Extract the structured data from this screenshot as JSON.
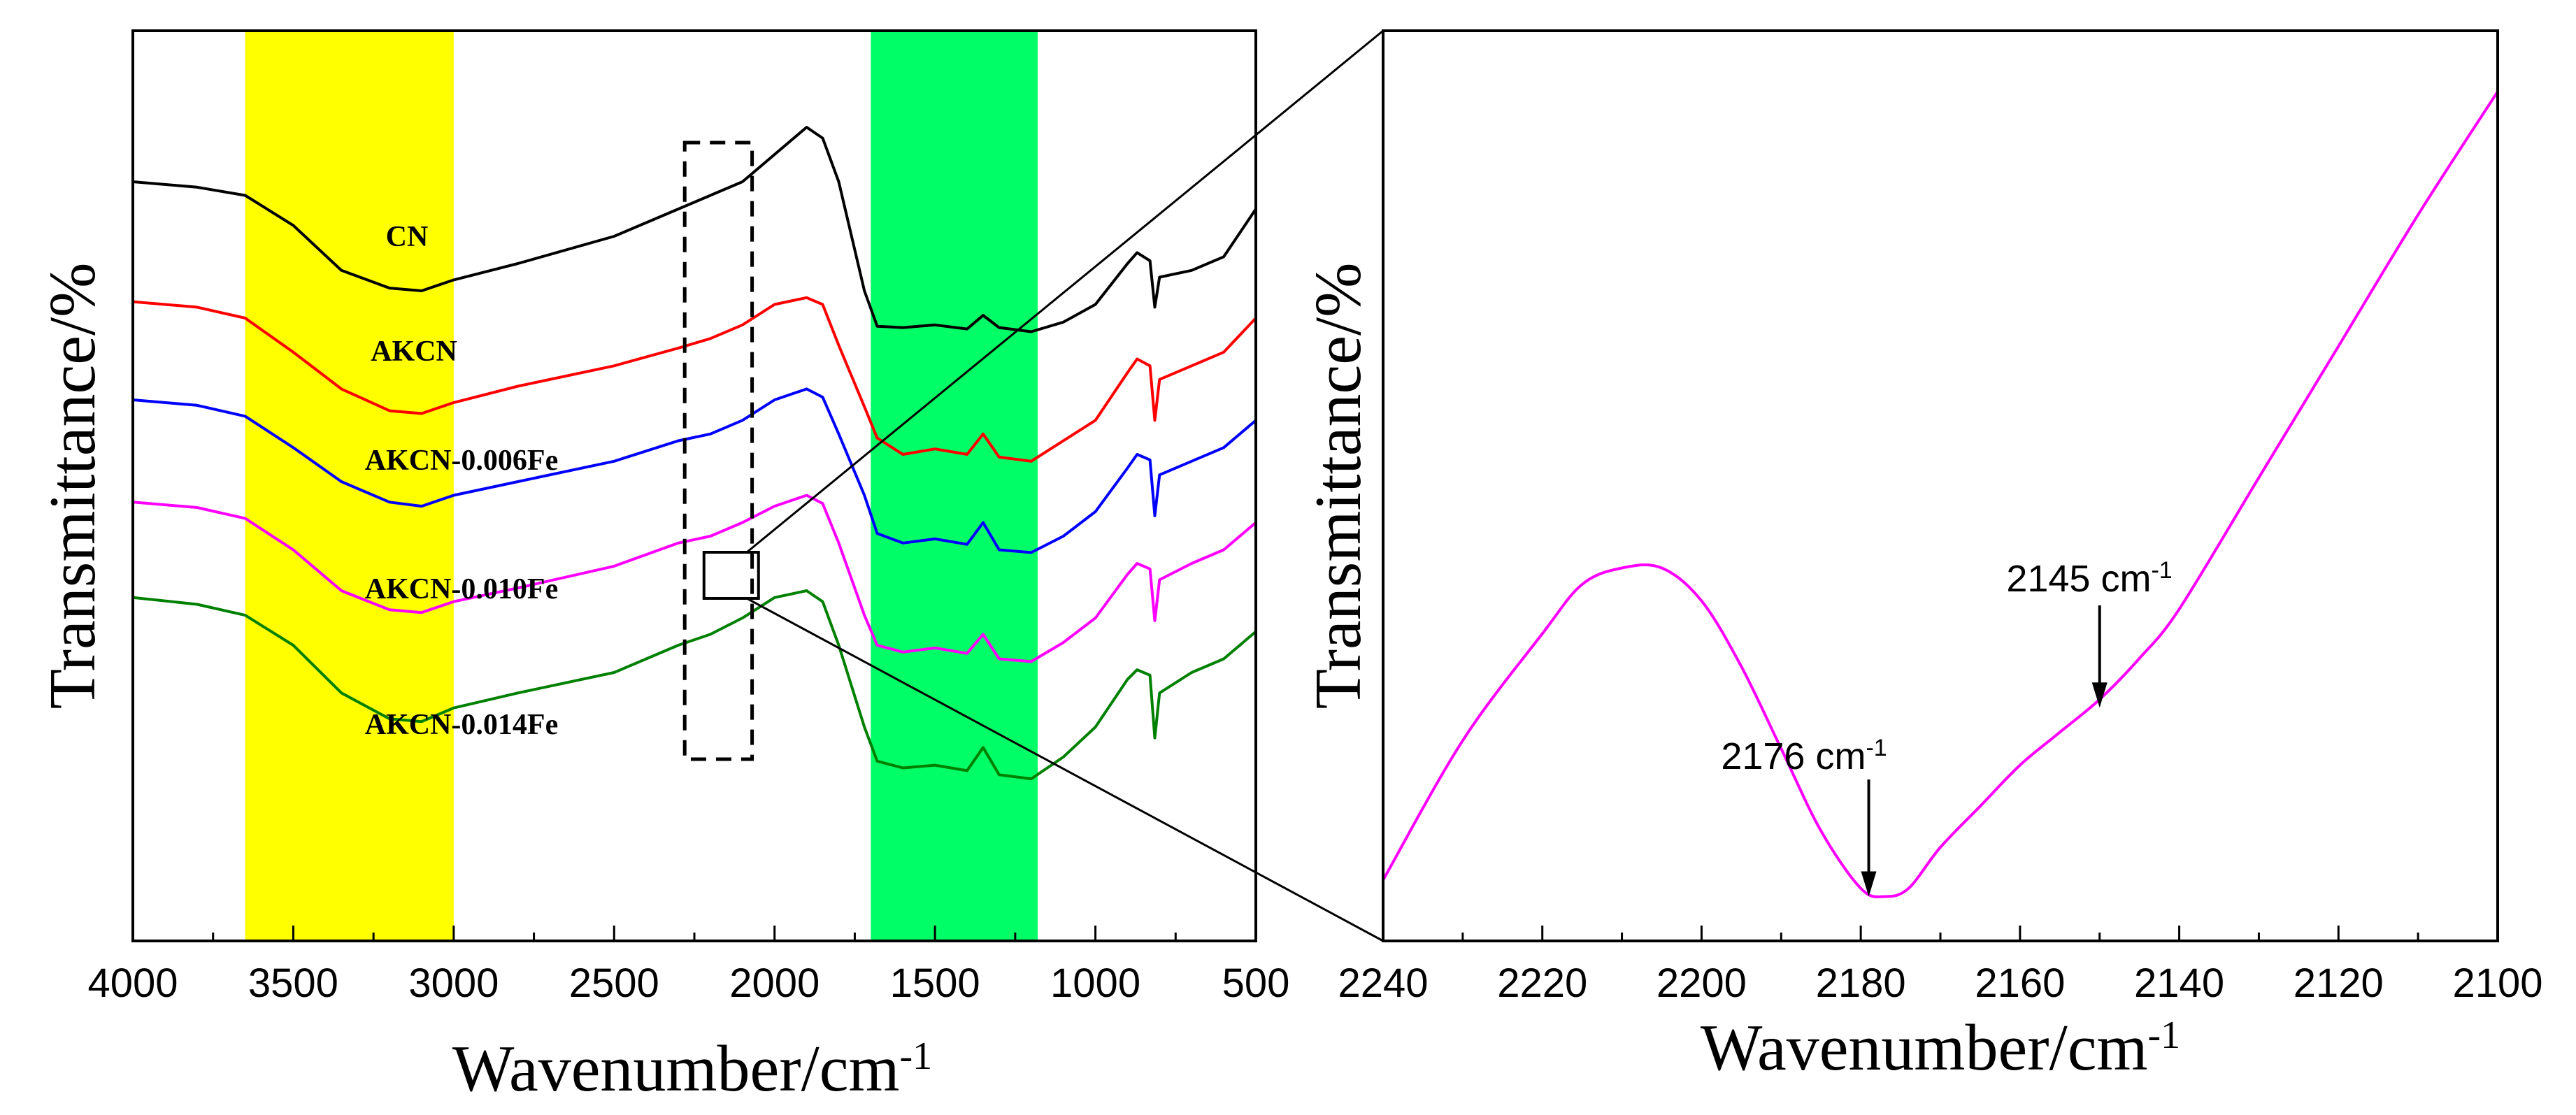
{
  "chart_data": [
    {
      "type": "line",
      "panel": "left",
      "xlabel_main": "Wavenumber/cm",
      "xlabel_sup": "-1",
      "ylabel": "Transmittance/%",
      "xlim": [
        4000,
        500
      ],
      "x_ticks": [
        "4000",
        "3500",
        "3000",
        "2500",
        "2000",
        "1500",
        "1000",
        "500"
      ],
      "y_ticks_shown": false,
      "highlight_bands": [
        {
          "name": "yellow-band",
          "x_from": 3650,
          "x_to": 3000,
          "color": "#ffff00"
        },
        {
          "name": "green-band",
          "x_from": 1700,
          "x_to": 1180,
          "color": "#00ff66"
        }
      ],
      "dashed_box": {
        "x_from": 2280,
        "x_to": 2070
      },
      "solid_box": {
        "x_from": 2220,
        "x_to": 2050
      },
      "series": [
        {
          "name": "CN",
          "label": "CN",
          "color": "#000000",
          "offset": 0,
          "points": [
            [
              4000,
              80
            ],
            [
              3800,
              84
            ],
            [
              3650,
              90
            ],
            [
              3500,
              112
            ],
            [
              3350,
              145
            ],
            [
              3200,
              158
            ],
            [
              3100,
              160
            ],
            [
              3000,
              152
            ],
            [
              2800,
              140
            ],
            [
              2500,
              120
            ],
            [
              2300,
              100
            ],
            [
              2100,
              80
            ],
            [
              2000,
              60
            ],
            [
              1900,
              40
            ],
            [
              1850,
              48
            ],
            [
              1800,
              80
            ],
            [
              1720,
              160
            ],
            [
              1680,
              186
            ],
            [
              1600,
              187
            ],
            [
              1500,
              185
            ],
            [
              1400,
              188
            ],
            [
              1350,
              178
            ],
            [
              1300,
              187
            ],
            [
              1200,
              190
            ],
            [
              1100,
              183
            ],
            [
              1000,
              170
            ],
            [
              900,
              140
            ],
            [
              870,
              132
            ],
            [
              830,
              138
            ],
            [
              815,
              172
            ],
            [
              800,
              150
            ],
            [
              700,
              145
            ],
            [
              600,
              135
            ],
            [
              500,
              100
            ]
          ]
        },
        {
          "name": "AKCN",
          "label": "AKCN",
          "color": "#ff0000",
          "offset": 0,
          "points": [
            [
              4000,
              168
            ],
            [
              3800,
              172
            ],
            [
              3650,
              180
            ],
            [
              3500,
              205
            ],
            [
              3350,
              232
            ],
            [
              3200,
              248
            ],
            [
              3100,
              250
            ],
            [
              3000,
              242
            ],
            [
              2800,
              230
            ],
            [
              2500,
              215
            ],
            [
              2300,
              202
            ],
            [
              2200,
              195
            ],
            [
              2100,
              185
            ],
            [
              2000,
              170
            ],
            [
              1900,
              165
            ],
            [
              1850,
              170
            ],
            [
              1800,
              200
            ],
            [
              1720,
              245
            ],
            [
              1680,
              268
            ],
            [
              1600,
              280
            ],
            [
              1500,
              276
            ],
            [
              1400,
              280
            ],
            [
              1350,
              265
            ],
            [
              1300,
              282
            ],
            [
              1200,
              285
            ],
            [
              1100,
              270
            ],
            [
              1000,
              255
            ],
            [
              900,
              220
            ],
            [
              870,
              210
            ],
            [
              830,
              215
            ],
            [
              815,
              255
            ],
            [
              800,
              225
            ],
            [
              700,
              215
            ],
            [
              600,
              205
            ],
            [
              500,
              180
            ]
          ]
        },
        {
          "name": "AKCN-0.006Fe",
          "label": "AKCN-0.006Fe",
          "color": "#0000ff",
          "offset": 0,
          "points": [
            [
              4000,
              240
            ],
            [
              3800,
              244
            ],
            [
              3650,
              252
            ],
            [
              3500,
              275
            ],
            [
              3350,
              300
            ],
            [
              3200,
              315
            ],
            [
              3100,
              318
            ],
            [
              3000,
              310
            ],
            [
              2800,
              300
            ],
            [
              2500,
              285
            ],
            [
              2300,
              270
            ],
            [
              2200,
              265
            ],
            [
              2100,
              255
            ],
            [
              2000,
              240
            ],
            [
              1900,
              232
            ],
            [
              1850,
              238
            ],
            [
              1800,
              265
            ],
            [
              1720,
              310
            ],
            [
              1680,
              338
            ],
            [
              1600,
              345
            ],
            [
              1500,
              342
            ],
            [
              1400,
              346
            ],
            [
              1350,
              330
            ],
            [
              1300,
              350
            ],
            [
              1200,
              352
            ],
            [
              1100,
              340
            ],
            [
              1000,
              322
            ],
            [
              900,
              290
            ],
            [
              870,
              280
            ],
            [
              830,
              284
            ],
            [
              815,
              325
            ],
            [
              800,
              295
            ],
            [
              700,
              285
            ],
            [
              600,
              275
            ],
            [
              500,
              255
            ]
          ]
        },
        {
          "name": "AKCN-0.010Fe",
          "label": "AKCN-0.010Fe",
          "color": "#ff00ff",
          "offset": 0,
          "points": [
            [
              4000,
              315
            ],
            [
              3800,
              319
            ],
            [
              3650,
              327
            ],
            [
              3500,
              350
            ],
            [
              3350,
              380
            ],
            [
              3200,
              394
            ],
            [
              3100,
              396
            ],
            [
              3000,
              388
            ],
            [
              2800,
              378
            ],
            [
              2500,
              362
            ],
            [
              2300,
              345
            ],
            [
              2200,
              340
            ],
            [
              2100,
              330
            ],
            [
              2000,
              318
            ],
            [
              1900,
              310
            ],
            [
              1850,
              316
            ],
            [
              1800,
              345
            ],
            [
              1720,
              398
            ],
            [
              1680,
              420
            ],
            [
              1600,
              425
            ],
            [
              1500,
              422
            ],
            [
              1400,
              426
            ],
            [
              1350,
              412
            ],
            [
              1300,
              430
            ],
            [
              1200,
              432
            ],
            [
              1100,
              418
            ],
            [
              1000,
              400
            ],
            [
              900,
              368
            ],
            [
              870,
              360
            ],
            [
              830,
              364
            ],
            [
              815,
              402
            ],
            [
              800,
              372
            ],
            [
              700,
              360
            ],
            [
              600,
              350
            ],
            [
              500,
              330
            ]
          ]
        },
        {
          "name": "AKCN-0.014Fe",
          "label": "AKCN-0.014Fe",
          "color": "#008000",
          "offset": 0,
          "points": [
            [
              4000,
              385
            ],
            [
              3800,
              390
            ],
            [
              3650,
              398
            ],
            [
              3500,
              420
            ],
            [
              3350,
              455
            ],
            [
              3200,
              474
            ],
            [
              3100,
              476
            ],
            [
              3000,
              466
            ],
            [
              2800,
              455
            ],
            [
              2500,
              440
            ],
            [
              2300,
              420
            ],
            [
              2200,
              412
            ],
            [
              2100,
              400
            ],
            [
              2000,
              385
            ],
            [
              1900,
              380
            ],
            [
              1850,
              388
            ],
            [
              1800,
              420
            ],
            [
              1720,
              480
            ],
            [
              1680,
              505
            ],
            [
              1600,
              510
            ],
            [
              1500,
              508
            ],
            [
              1400,
              512
            ],
            [
              1350,
              495
            ],
            [
              1300,
              515
            ],
            [
              1200,
              518
            ],
            [
              1100,
              502
            ],
            [
              1000,
              480
            ],
            [
              900,
              445
            ],
            [
              870,
              438
            ],
            [
              830,
              442
            ],
            [
              815,
              488
            ],
            [
              800,
              455
            ],
            [
              700,
              440
            ],
            [
              600,
              430
            ],
            [
              500,
              410
            ]
          ]
        }
      ]
    },
    {
      "type": "line",
      "panel": "right",
      "xlabel_main": "Wavenumber/cm",
      "xlabel_sup": "-1",
      "ylabel": "Transmittance/%",
      "xlim": [
        2240,
        2100
      ],
      "x_ticks": [
        "2240",
        "2220",
        "2200",
        "2180",
        "2160",
        "2140",
        "2120",
        "2100"
      ],
      "y_ticks_shown": false,
      "series": [
        {
          "name": "AKCN-0.010Fe zoom",
          "color": "#ff00ff",
          "points": [
            [
              2240,
              0.04
            ],
            [
              2230,
              0.21
            ],
            [
              2220,
              0.34
            ],
            [
              2215,
              0.4
            ],
            [
              2210,
              0.42
            ],
            [
              2205,
              0.42
            ],
            [
              2200,
              0.38
            ],
            [
              2195,
              0.3
            ],
            [
              2190,
              0.2
            ],
            [
              2185,
              0.1
            ],
            [
              2180,
              0.03
            ],
            [
              2177,
              0.02
            ],
            [
              2174,
              0.03
            ],
            [
              2170,
              0.08
            ],
            [
              2165,
              0.13
            ],
            [
              2160,
              0.18
            ],
            [
              2155,
              0.22
            ],
            [
              2150,
              0.26
            ],
            [
              2145,
              0.31
            ],
            [
              2140,
              0.37
            ],
            [
              2130,
              0.53
            ],
            [
              2120,
              0.69
            ],
            [
              2110,
              0.85
            ],
            [
              2100,
              1.0
            ]
          ]
        }
      ],
      "annotations": [
        {
          "text": "2176 cm",
          "sup": "-1",
          "x": 2179,
          "y": 0.02
        },
        {
          "text": "2145 cm",
          "sup": "-1",
          "x": 2150,
          "y": 0.25
        }
      ]
    }
  ]
}
